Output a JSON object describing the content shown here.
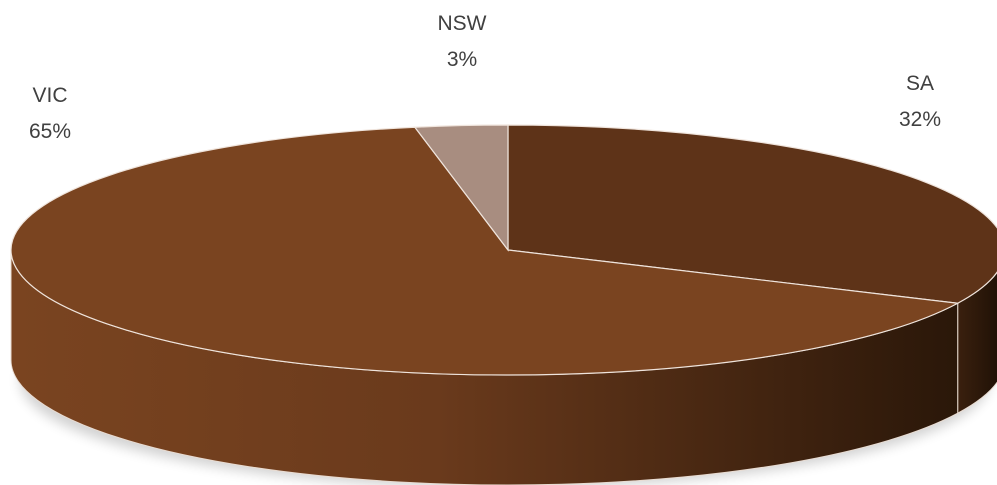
{
  "chart_data": {
    "type": "pie",
    "style": "3d",
    "slices": [
      {
        "label": "SA",
        "percent_label": "32%",
        "value": 32,
        "color": "#5e3318"
      },
      {
        "label": "VIC",
        "percent_label": "65%",
        "value": 65,
        "color": "#7a4420"
      },
      {
        "label": "NSW",
        "percent_label": "3%",
        "value": 3,
        "color": "#a88d80"
      }
    ]
  }
}
